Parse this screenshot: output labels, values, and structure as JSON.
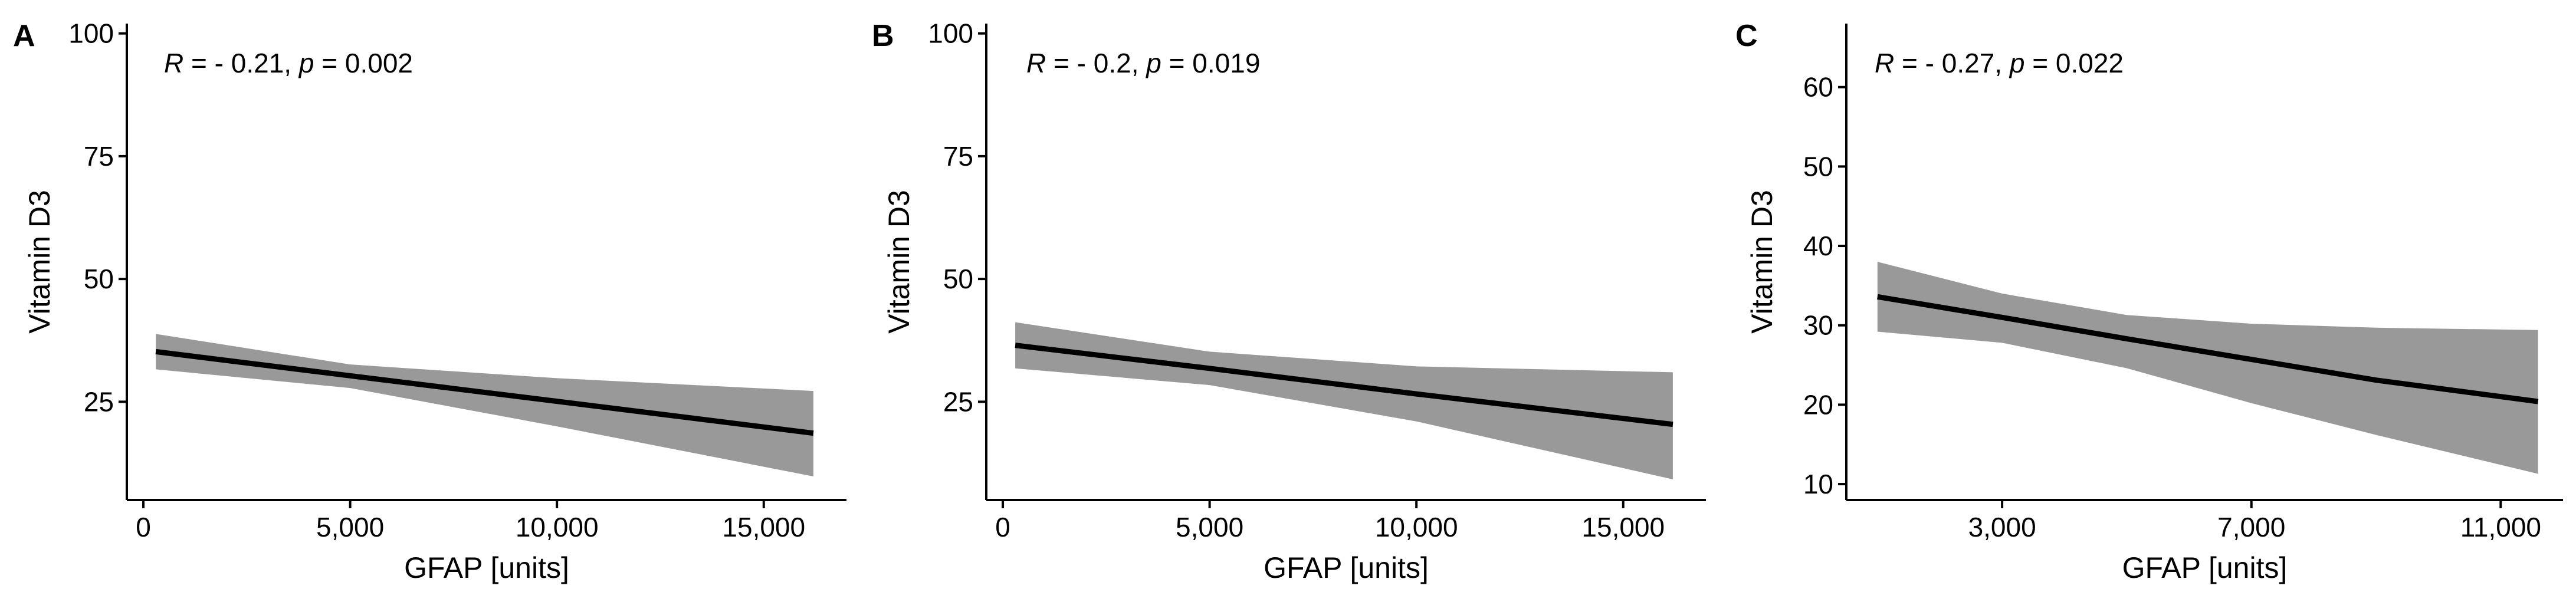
{
  "chart_data": [
    {
      "type": "line",
      "panel_label": "A",
      "annotation": {
        "r_label": "R",
        "r_value": " = - 0.21, ",
        "p_label": "p",
        "p_value": " = 0.002"
      },
      "xlabel": "GFAP [units]",
      "ylabel": "Vitamin D3",
      "xlim": [
        -400,
        17000
      ],
      "ylim": [
        5,
        102
      ],
      "xticks": [
        0,
        5000,
        10000,
        15000
      ],
      "xtick_labels": [
        "0",
        "5,000",
        "10,000",
        "15,000"
      ],
      "yticks": [
        25,
        50,
        75,
        100
      ],
      "ytick_labels": [
        "25",
        "50",
        "75",
        "100"
      ],
      "grid": false,
      "series": [
        {
          "fit_x": [
            300,
            5000,
            10000,
            16200
          ],
          "fit_y": [
            35.2,
            30.3,
            25.1,
            18.6
          ],
          "ci_upper": [
            38.8,
            32.6,
            29.8,
            27.2
          ],
          "ci_lower": [
            31.6,
            27.8,
            20.0,
            9.8
          ],
          "line_color": "#000000",
          "band_color": "#999999"
        }
      ]
    },
    {
      "type": "line",
      "panel_label": "B",
      "annotation": {
        "r_label": "R",
        "r_value": " = - 0.2, ",
        "p_label": "p",
        "p_value": " = 0.019"
      },
      "xlabel": "GFAP [units]",
      "ylabel": "Vitamin D3",
      "xlim": [
        -400,
        17000
      ],
      "ylim": [
        5,
        102
      ],
      "xticks": [
        0,
        5000,
        10000,
        15000
      ],
      "xtick_labels": [
        "0",
        "5,000",
        "10,000",
        "15,000"
      ],
      "yticks": [
        25,
        50,
        75,
        100
      ],
      "ytick_labels": [
        "25",
        "50",
        "75",
        "100"
      ],
      "grid": false,
      "series": [
        {
          "fit_x": [
            300,
            5000,
            10000,
            16200
          ],
          "fit_y": [
            36.5,
            31.8,
            26.6,
            20.4
          ],
          "ci_upper": [
            41.2,
            35.2,
            32.2,
            31.0
          ],
          "ci_lower": [
            31.8,
            28.4,
            21.0,
            9.2
          ],
          "line_color": "#000000",
          "band_color": "#999999"
        }
      ]
    },
    {
      "type": "line",
      "panel_label": "C",
      "annotation": {
        "r_label": "R",
        "r_value": " = - 0.27, ",
        "p_label": "p",
        "p_value": " = 0.022"
      },
      "xlabel": "GFAP [units]",
      "ylabel": "Vitamin D3",
      "xlim": [
        500,
        12000
      ],
      "ylim": [
        8,
        68
      ],
      "xticks": [
        3000,
        7000,
        11000
      ],
      "xtick_labels": [
        "3,000",
        "7,000",
        "11,000"
      ],
      "yticks": [
        10,
        20,
        30,
        40,
        50,
        60
      ],
      "ytick_labels": [
        "10",
        "20",
        "30",
        "40",
        "50",
        "60"
      ],
      "grid": false,
      "series": [
        {
          "fit_x": [
            1000,
            3000,
            5000,
            7000,
            9000,
            11600
          ],
          "fit_y": [
            33.6,
            31.0,
            28.3,
            25.7,
            23.1,
            20.4
          ],
          "ci_upper": [
            38.0,
            34.0,
            31.3,
            30.2,
            29.7,
            29.4
          ],
          "ci_lower": [
            29.2,
            27.8,
            24.6,
            20.2,
            16.2,
            11.3
          ],
          "line_color": "#000000",
          "band_color": "#999999"
        }
      ]
    }
  ]
}
